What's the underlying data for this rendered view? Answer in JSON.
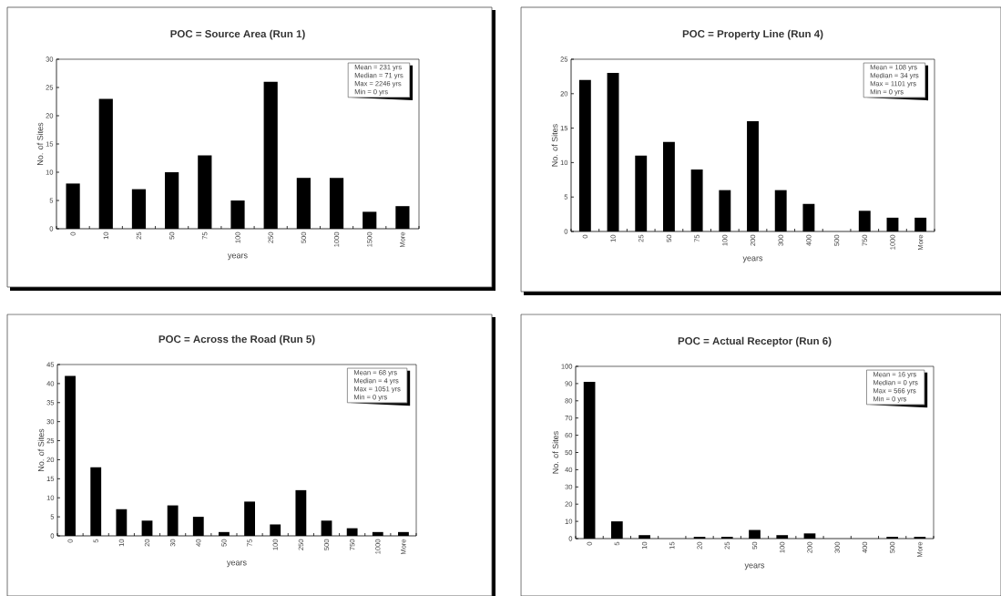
{
  "chart_data": [
    {
      "type": "bar",
      "title": "POC = Source Area (Run 1)",
      "xlabel": "years",
      "ylabel": "No. of Sites",
      "color": "#000000",
      "categories": [
        "0",
        "10",
        "25",
        "50",
        "75",
        "100",
        "250",
        "500",
        "1000",
        "1500",
        "More"
      ],
      "values": [
        8,
        23,
        7,
        10,
        13,
        5,
        26,
        9,
        9,
        3,
        4
      ],
      "ylim": [
        0,
        30
      ],
      "yticks": [
        0,
        5,
        10,
        15,
        20,
        25,
        30
      ],
      "annotations": [
        "Mean = 231 yrs",
        "Median = 71 yrs",
        "Max = 2246 yrs",
        "Min = 0 yrs"
      ]
    },
    {
      "type": "bar",
      "title": "POC = Property Line (Run 4)",
      "xlabel": "years",
      "ylabel": "No. of Sites",
      "color": "#000000",
      "categories": [
        "0",
        "10",
        "25",
        "50",
        "75",
        "100",
        "200",
        "300",
        "400",
        "500",
        "750",
        "1000",
        "More"
      ],
      "values": [
        22,
        23,
        11,
        13,
        9,
        6,
        16,
        6,
        4,
        0,
        3,
        2,
        2
      ],
      "ylim": [
        0,
        25
      ],
      "yticks": [
        0,
        5,
        10,
        15,
        20,
        25
      ],
      "annotations": [
        "Mean = 108 yrs",
        "Median = 34 yrs",
        "Max = 1101 yrs",
        "Min = 0 yrs"
      ]
    },
    {
      "type": "bar",
      "title": "POC = Across the Road (Run 5)",
      "xlabel": "years",
      "ylabel": "No. of Sites",
      "color": "#000000",
      "categories": [
        "0",
        "5",
        "10",
        "20",
        "30",
        "40",
        "50",
        "75",
        "100",
        "250",
        "500",
        "750",
        "1000",
        "More"
      ],
      "values": [
        42,
        18,
        7,
        4,
        8,
        5,
        1,
        9,
        3,
        12,
        4,
        2,
        1,
        1
      ],
      "ylim": [
        0,
        45
      ],
      "yticks": [
        0,
        5,
        10,
        15,
        20,
        25,
        30,
        35,
        40,
        45
      ],
      "annotations": [
        "Mean = 68 yrs",
        "Median = 4 yrs",
        "Max = 1051 yrs",
        "Min = 0 yrs"
      ]
    },
    {
      "type": "bar",
      "title": "POC = Actual Receptor (Run 6)",
      "xlabel": "years",
      "ylabel": "No. of Sites",
      "color": "#000000",
      "categories": [
        "0",
        "5",
        "10",
        "15",
        "20",
        "25",
        "50",
        "100",
        "200",
        "300",
        "400",
        "500",
        "More"
      ],
      "values": [
        91,
        10,
        2,
        0,
        1,
        1,
        5,
        2,
        3,
        0,
        0,
        1,
        1
      ],
      "ylim": [
        0,
        100
      ],
      "yticks": [
        0,
        10,
        20,
        30,
        40,
        50,
        60,
        70,
        80,
        90,
        100
      ],
      "annotations": [
        "Mean = 16 yrs",
        "Median = 0 yrs",
        "Max = 566 yrs",
        "Min = 0 yrs"
      ]
    }
  ]
}
